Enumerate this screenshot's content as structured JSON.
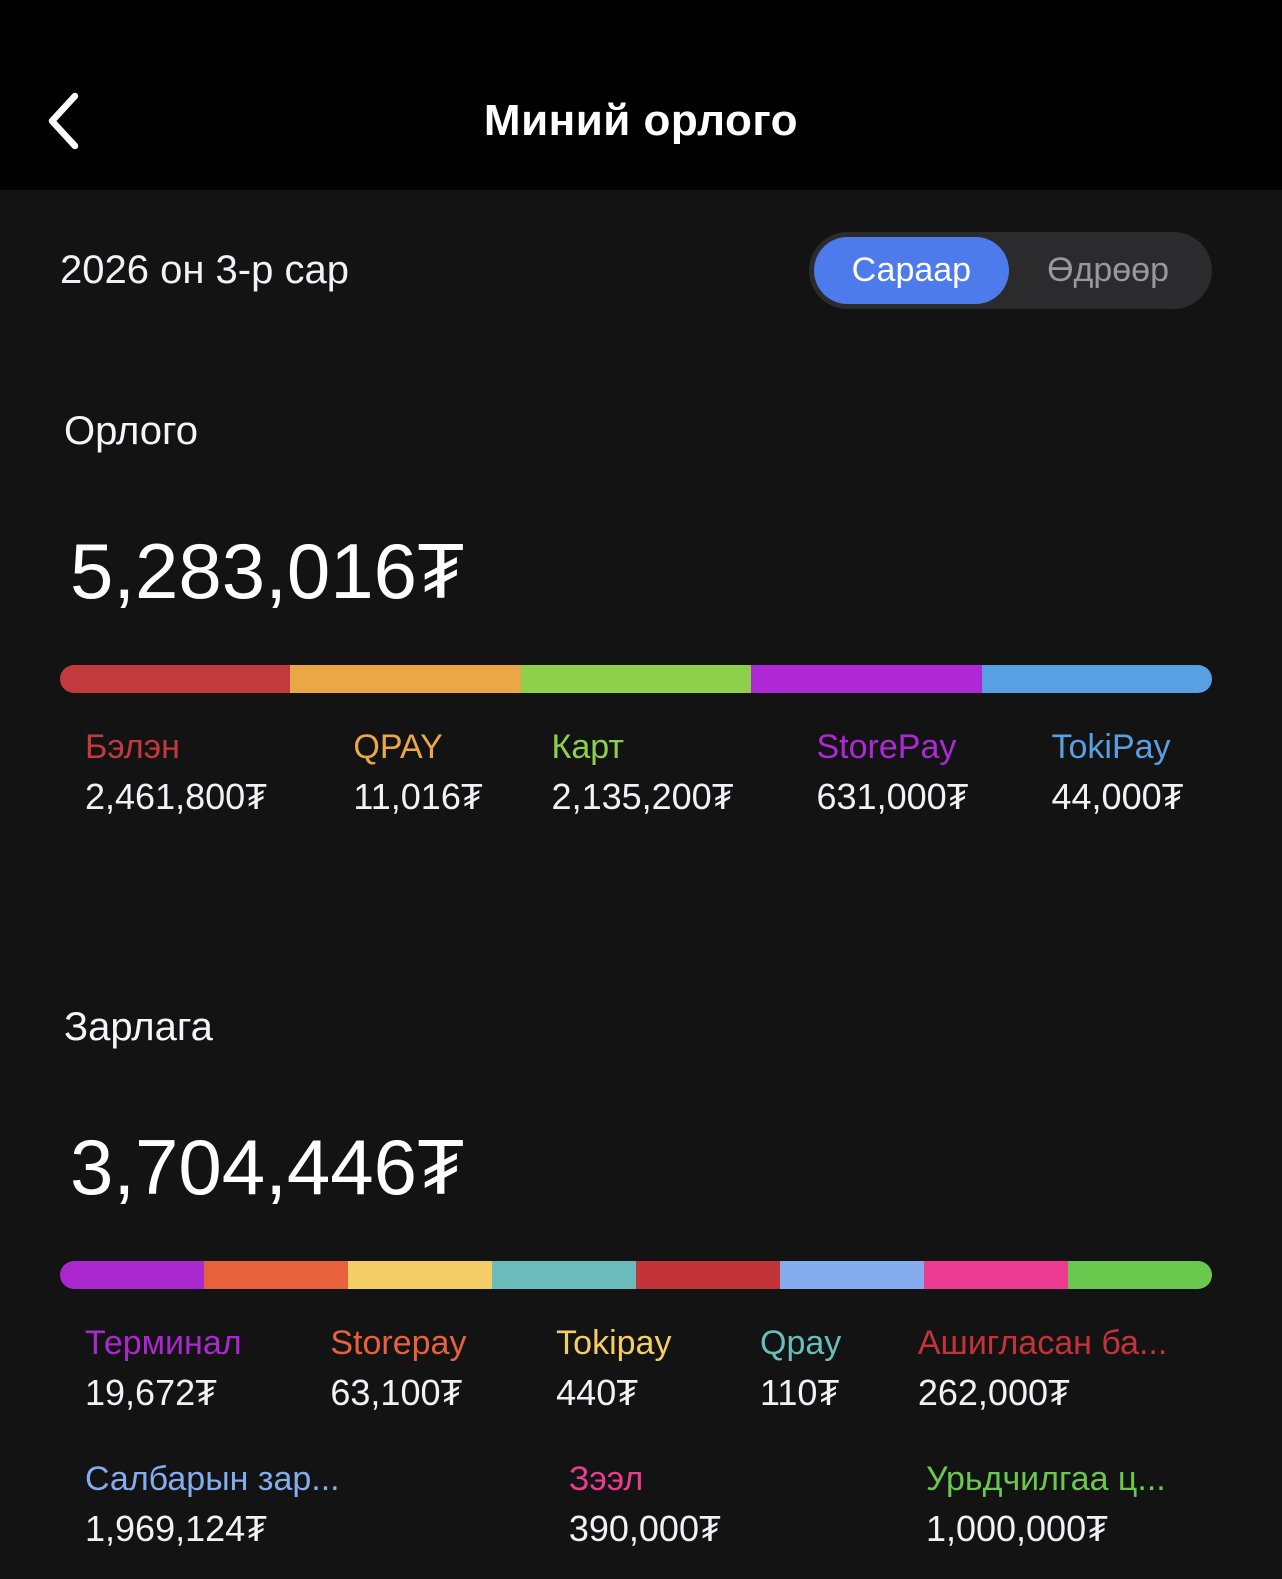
{
  "header": {
    "title": "Миний орлого",
    "back_icon": "chevron-left"
  },
  "period": {
    "label": "2026 он 3-р сар",
    "toggle": {
      "options": [
        "Сараар",
        "Өдрөөр"
      ],
      "selected": "Сараар",
      "selected_color": "#4d7bec"
    }
  },
  "income": {
    "title": "Орлого",
    "total": "5,283,016₮",
    "items": [
      {
        "label": "Бэлэн",
        "value": "2,461,800₮",
        "color": "#c23a3e"
      },
      {
        "label": "QPAY",
        "value": "11,016₮",
        "color": "#e9a845"
      },
      {
        "label": "Карт",
        "value": "2,135,200₮",
        "color": "#8ed04b"
      },
      {
        "label": "StorePay",
        "value": "631,000₮",
        "color": "#ae28d6"
      },
      {
        "label": "TokiPay",
        "value": "44,000₮",
        "color": "#59a0e3"
      }
    ]
  },
  "expense": {
    "title": "Зарлага",
    "total": "3,704,446₮",
    "items": [
      {
        "label": "Терминал",
        "value": "19,672₮",
        "color": "#aa28cd"
      },
      {
        "label": "Storepay",
        "value": "63,100₮",
        "color": "#e7613d"
      },
      {
        "label": "Tokipay",
        "value": "440₮",
        "color": "#f5cd66"
      },
      {
        "label": "Qpay",
        "value": "110₮",
        "color": "#6bbcba"
      },
      {
        "label": "Ашигласан ба...",
        "value": "262,000₮",
        "color": "#c23438"
      },
      {
        "label": "Салбарын зар...",
        "value": "1,969,124₮",
        "color": "#84acee"
      },
      {
        "label": "Зээл",
        "value": "390,000₮",
        "color": "#ee3b92"
      },
      {
        "label": "Урьдчилгаа ц...",
        "value": "1,000,000₮",
        "color": "#6ac84e"
      }
    ]
  }
}
